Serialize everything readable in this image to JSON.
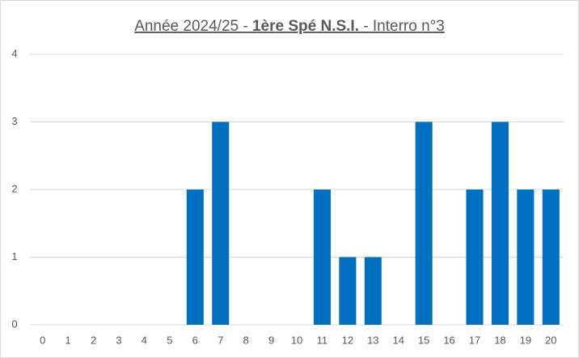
{
  "chart_data": {
    "type": "bar",
    "title_parts": [
      "Année 2024/25 - ",
      "1ère Spé N.S.I.",
      " - Interro n°3"
    ],
    "title_bold": [
      false,
      true,
      false
    ],
    "categories": [
      0,
      1,
      2,
      3,
      4,
      5,
      6,
      7,
      8,
      9,
      10,
      11,
      12,
      13,
      14,
      15,
      16,
      17,
      18,
      19,
      20
    ],
    "values": [
      0,
      0,
      0,
      0,
      0,
      0,
      2,
      3,
      0,
      0,
      0,
      2,
      1,
      1,
      0,
      3,
      0,
      2,
      3,
      2,
      2
    ],
    "color": "#0070c0",
    "ylim": [
      0,
      4
    ],
    "yticks": [
      0,
      1,
      2,
      3,
      4
    ],
    "grid": true
  }
}
